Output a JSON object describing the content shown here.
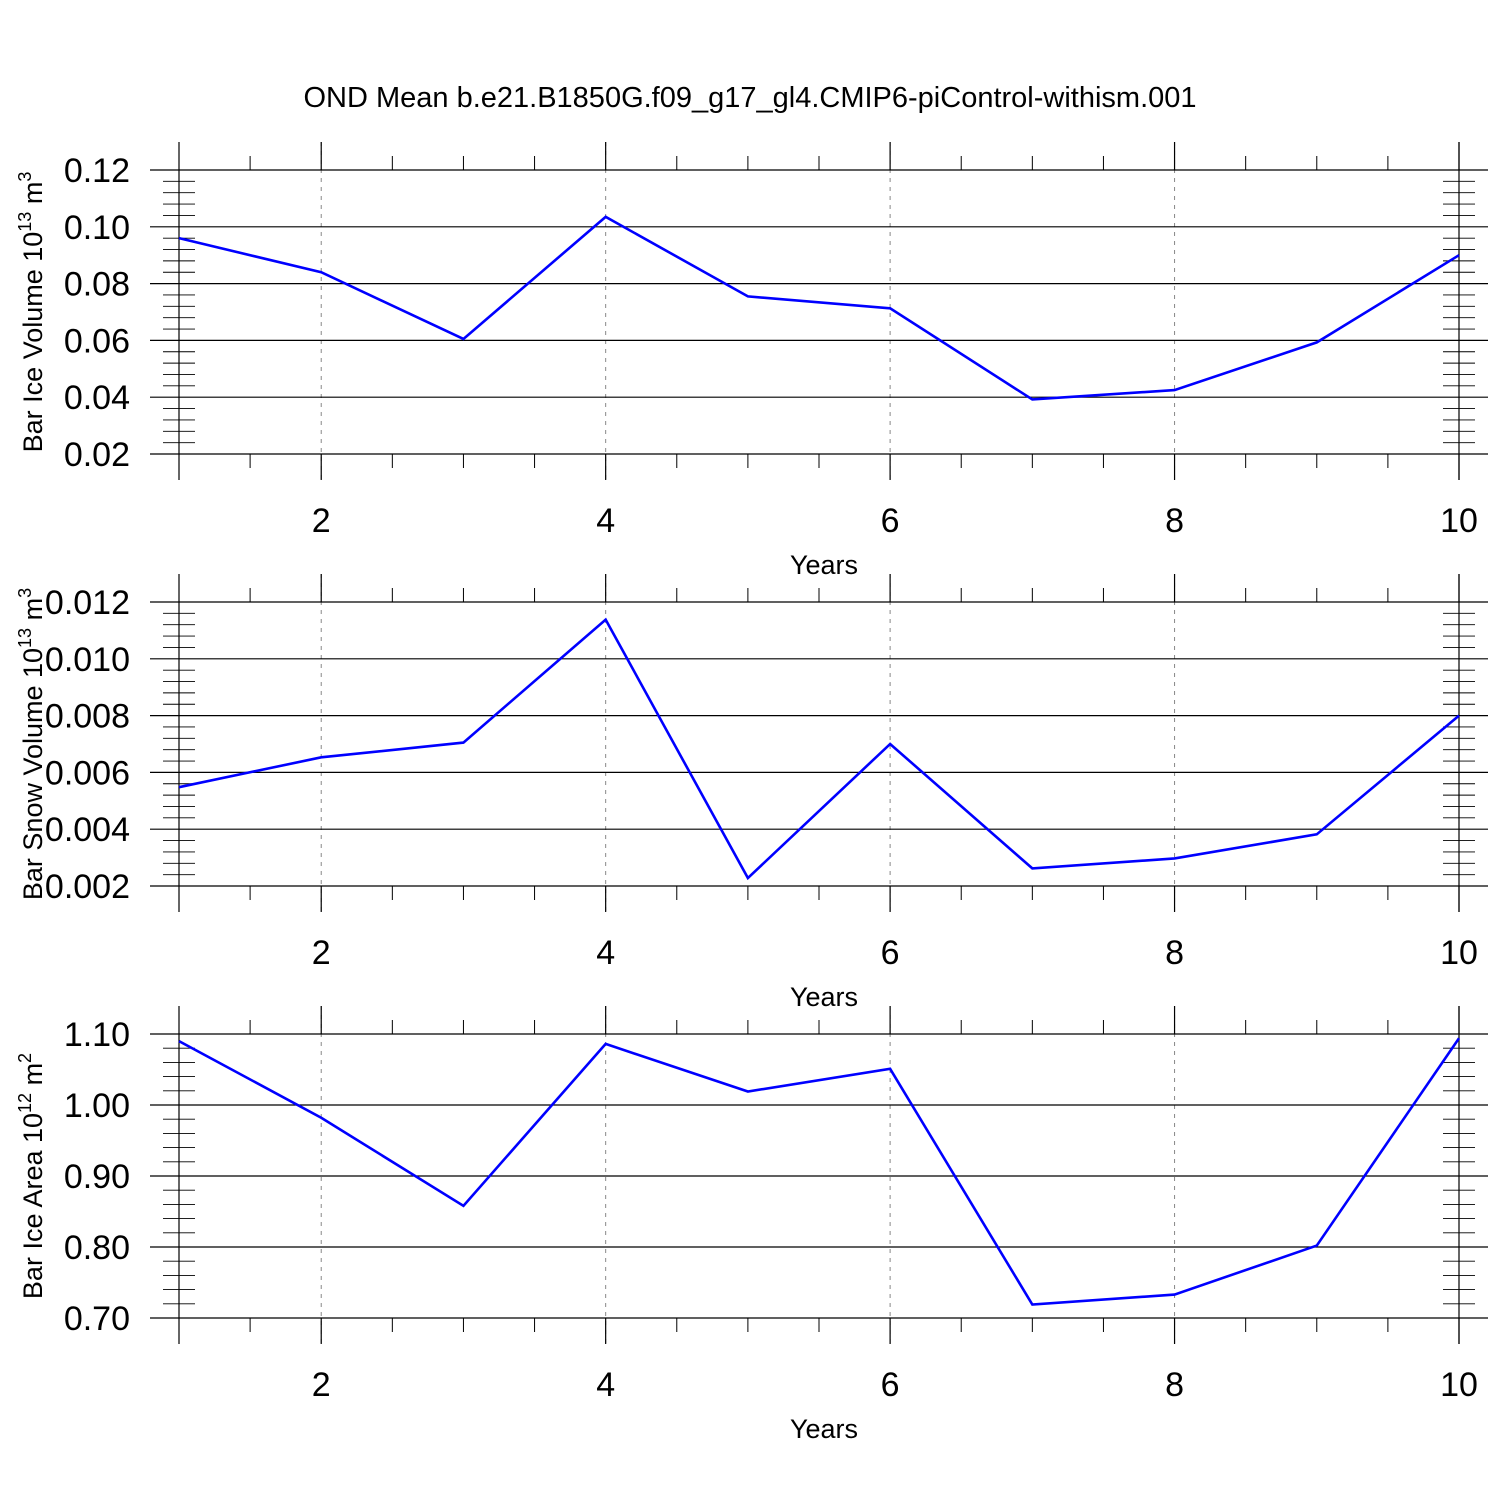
{
  "title": "OND Mean b.e21.B1850G.f09_g17_gl4.CMIP6-piControl-withism.001",
  "colors": {
    "line": "#0000ff",
    "axis": "#000000",
    "grid": "#888888",
    "background": "#ffffff"
  },
  "chart_data": [
    {
      "type": "line",
      "xlabel": "Years",
      "ylabel_main": "Bar Ice Volume 10",
      "ylabel_sup_exp": "13",
      "ylabel_unit": " m",
      "ylabel_unit_sup": "3",
      "x": [
        1,
        2,
        3,
        4,
        5,
        6,
        7,
        8,
        9,
        10
      ],
      "series": [
        {
          "values": [
            0.096,
            0.084,
            0.0605,
            0.1035,
            0.0755,
            0.0713,
            0.0392,
            0.0425,
            0.0593,
            0.09
          ]
        }
      ],
      "xlim": [
        1,
        10
      ],
      "ylim": [
        0.02,
        0.12
      ],
      "xticks": [
        2,
        4,
        6,
        8,
        10
      ],
      "xtick_labels": [
        "2",
        "4",
        "6",
        "8",
        "10"
      ],
      "yticks": [
        0.02,
        0.04,
        0.06,
        0.08,
        0.1,
        0.12
      ],
      "ytick_labels": [
        "0.02",
        "0.04",
        "0.06",
        "0.08",
        "0.10",
        "0.12"
      ],
      "grid": "vertical dashed at major x ticks"
    },
    {
      "type": "line",
      "xlabel": "Years",
      "ylabel_main": "Bar Snow Volume 10",
      "ylabel_sup_exp": "13",
      "ylabel_unit": " m",
      "ylabel_unit_sup": "3",
      "x": [
        1,
        2,
        3,
        4,
        5,
        6,
        7,
        8,
        9,
        10
      ],
      "series": [
        {
          "values": [
            0.00548,
            0.00653,
            0.00705,
            0.01138,
            0.00228,
            0.007,
            0.00262,
            0.00297,
            0.00382,
            0.008
          ]
        }
      ],
      "xlim": [
        1,
        10
      ],
      "ylim": [
        0.002,
        0.012
      ],
      "xticks": [
        2,
        4,
        6,
        8,
        10
      ],
      "xtick_labels": [
        "2",
        "4",
        "6",
        "8",
        "10"
      ],
      "yticks": [
        0.002,
        0.004,
        0.006,
        0.008,
        0.01,
        0.012
      ],
      "ytick_labels": [
        "0.002",
        "0.004",
        "0.006",
        "0.008",
        "0.010",
        "0.012"
      ],
      "grid": "vertical dashed at major x ticks"
    },
    {
      "type": "line",
      "xlabel": "Years",
      "ylabel_main": "Bar Ice Area 10",
      "ylabel_sup_exp": "12",
      "ylabel_unit": " m",
      "ylabel_unit_sup": "2",
      "x": [
        1,
        2,
        3,
        4,
        5,
        6,
        7,
        8,
        9,
        10
      ],
      "series": [
        {
          "values": [
            1.09,
            0.982,
            0.858,
            1.086,
            1.019,
            1.051,
            0.719,
            0.733,
            0.802,
            1.094
          ]
        }
      ],
      "xlim": [
        1,
        10
      ],
      "ylim": [
        0.7,
        1.1
      ],
      "xticks": [
        2,
        4,
        6,
        8,
        10
      ],
      "xtick_labels": [
        "2",
        "4",
        "6",
        "8",
        "10"
      ],
      "yticks": [
        0.7,
        0.8,
        0.9,
        1.0,
        1.1
      ],
      "ytick_labels": [
        "0.70",
        "0.80",
        "0.90",
        "1.00",
        "1.10"
      ],
      "grid": "vertical dashed at major x ticks"
    }
  ]
}
